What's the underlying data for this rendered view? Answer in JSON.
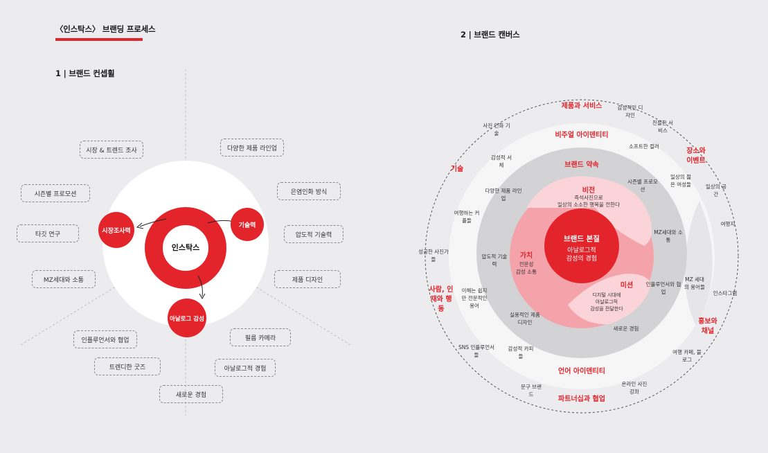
{
  "header": {
    "title": "〈인스탁스〉 브랜딩 프로세스",
    "section1": "1 | 브랜드 컨셉휠",
    "section2": "2 | 브랜드 캔버스"
  },
  "wheel": {
    "center": "인스탁스",
    "nodes": {
      "market": "시장조사력",
      "tech": "기술력",
      "analog": "아날로그 감성"
    },
    "left": [
      "시장 & 트렌드 조사",
      "시즌별 프로모션",
      "타깃 연구",
      "MZ세대와 소통"
    ],
    "right": [
      "다양한 제품 라인업",
      "은염인화 방식",
      "압도적 기술력",
      "제품 디자인"
    ],
    "bottom": [
      "인플루언서와 협업",
      "트렌디한 굿즈",
      "새로운 경험",
      "필름 카메라",
      "아날로그적 경험"
    ]
  },
  "canvas": {
    "core": {
      "title": "브랜드 본질",
      "line1": "아날로그적",
      "line2": "감성의 경험"
    },
    "vision": {
      "title": "비전",
      "line1": "즉석사진으로",
      "line2": "일상의 소소한 행복을 전한다"
    },
    "value": {
      "title": "가치",
      "line1": "전문성",
      "line2": "감성 소통"
    },
    "mission": {
      "title": "미션",
      "line1": "디지털 시대에",
      "line2": "아날로그적",
      "line3": "감성을 전달한다"
    },
    "ring_labels": {
      "promise": "브랜드 약속",
      "visual": "비주얼 아이덴티티",
      "verbal": "언어 아이덴티티",
      "product": "제품과 서비스",
      "place": "장소와 이벤트",
      "tech": "기술",
      "people": "사람, 인재와 행동",
      "promo": "홍보와 채널",
      "partner": "파트너십과 협업"
    },
    "items": {
      "i1": "다양한 제품 라인업",
      "i2": "시즌별 프로모션",
      "i3": "MZ세대와 소통",
      "i4": "압도적 기술력",
      "i5": "인플루언서와 협업",
      "i6": "실용적인 제품 디자인",
      "i7": "새로운 경험",
      "i8": "감성적 서체",
      "i9": "소프트한 컬러",
      "i10": "여행하는 커플들",
      "i11": "일상의 젊은 여성들",
      "i12": "이해는 쉽지만 전문적인 용어",
      "i13": "MZ 세대의 용어들",
      "i14": "감성적 카피들",
      "i15": "사진 인화 기술",
      "i16": "감성적인 디자인",
      "i17": "친절한 서비스",
      "i18": "일상의 공간",
      "i19": "여행지",
      "i20": "성공한 사진가들",
      "i21": "인스타그램",
      "i22": "여행 카페, 블로그",
      "i23": "SNS 인플루언서들",
      "i24": "문구 브랜드",
      "i25": "온라인 사진 강좌"
    }
  },
  "colors": {
    "red": "#e3242b",
    "pink": "#f4a3aa",
    "lightpink": "#fad4d8",
    "grey": "#d3d3d6",
    "lightgrey": "#e6e6e8",
    "bg": "#ececee"
  }
}
